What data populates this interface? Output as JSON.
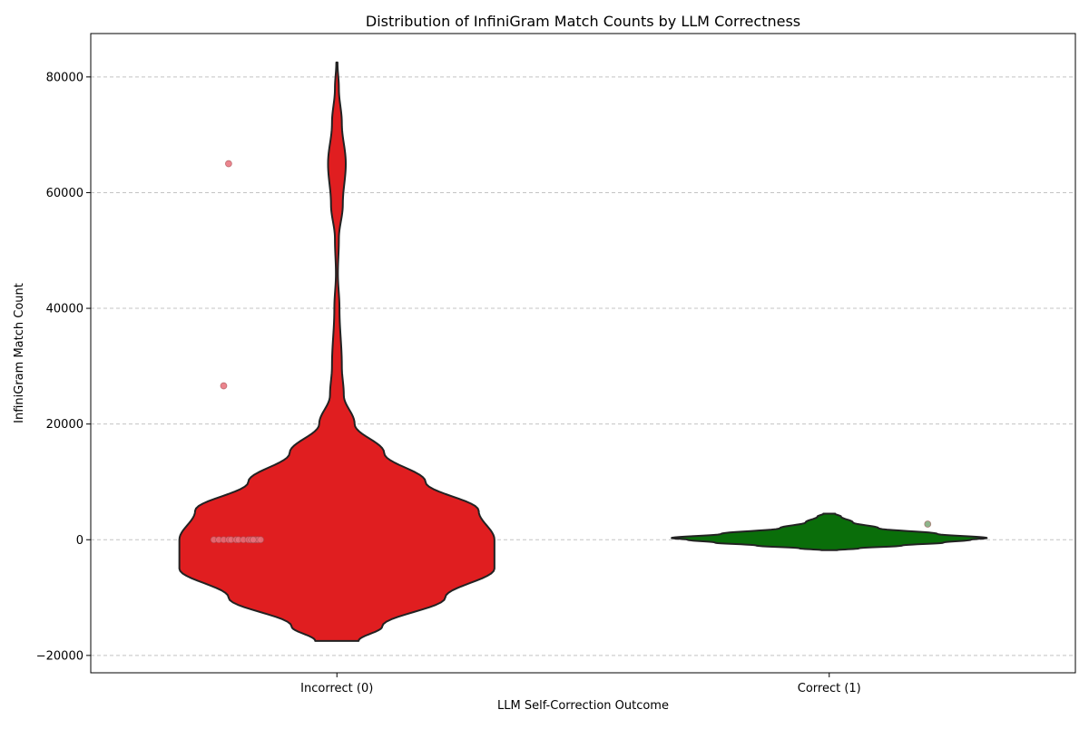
{
  "chart_data": {
    "type": "violin",
    "title": "Distribution of InfiniGram Match Counts by LLM Correctness",
    "xlabel": "LLM Self-Correction Outcome",
    "ylabel": "InfiniGram Match Count",
    "ylim": [
      -23000,
      87500
    ],
    "yticks": [
      -20000,
      0,
      20000,
      40000,
      60000,
      80000
    ],
    "ytick_labels": [
      "−20000",
      "0",
      "20000",
      "40000",
      "60000",
      "80000"
    ],
    "grid": "y-dashed",
    "categories": [
      "Incorrect (0)",
      "Correct (1)"
    ],
    "series": [
      {
        "category": "Incorrect (0)",
        "color": "#e01e20",
        "point_color": "#e8707a",
        "density_profile": [
          {
            "y": -17500,
            "w": 0.11
          },
          {
            "y": -15000,
            "w": 0.23
          },
          {
            "y": -10000,
            "w": 0.55
          },
          {
            "y": -5000,
            "w": 0.8
          },
          {
            "y": 0,
            "w": 0.8
          },
          {
            "y": 5000,
            "w": 0.72
          },
          {
            "y": 10000,
            "w": 0.45
          },
          {
            "y": 15000,
            "w": 0.24
          },
          {
            "y": 20000,
            "w": 0.09
          },
          {
            "y": 25000,
            "w": 0.035
          },
          {
            "y": 30000,
            "w": 0.025
          },
          {
            "y": 40000,
            "w": 0.013
          },
          {
            "y": 46000,
            "w": 0.005
          },
          {
            "y": 52000,
            "w": 0.01
          },
          {
            "y": 58000,
            "w": 0.03
          },
          {
            "y": 65000,
            "w": 0.045
          },
          {
            "y": 72000,
            "w": 0.025
          },
          {
            "y": 78000,
            "w": 0.01
          },
          {
            "y": 82500,
            "w": 0.003
          }
        ],
        "points": [
          {
            "y": 65000,
            "jitter": -0.22
          },
          {
            "y": 26600,
            "jitter": -0.23
          },
          {
            "y": 0,
            "jitter": -0.25
          },
          {
            "y": 0,
            "jitter": -0.24
          },
          {
            "y": 0,
            "jitter": -0.23
          },
          {
            "y": 0,
            "jitter": -0.22
          },
          {
            "y": 0,
            "jitter": -0.215
          },
          {
            "y": 0,
            "jitter": -0.205
          },
          {
            "y": 0,
            "jitter": -0.2
          },
          {
            "y": 0,
            "jitter": -0.19
          },
          {
            "y": 0,
            "jitter": -0.18
          },
          {
            "y": 0,
            "jitter": -0.175
          },
          {
            "y": 0,
            "jitter": -0.17
          },
          {
            "y": 0,
            "jitter": -0.165
          },
          {
            "y": 0,
            "jitter": -0.16
          },
          {
            "y": 0,
            "jitter": -0.155
          },
          {
            "y": 0,
            "jitter": -0.17
          }
        ]
      },
      {
        "category": "Correct (1)",
        "color": "#0a6e0a",
        "point_color": "#7aa878",
        "density_profile": [
          {
            "y": -1800,
            "w": 0.04
          },
          {
            "y": -1500,
            "w": 0.15
          },
          {
            "y": -1000,
            "w": 0.37
          },
          {
            "y": -500,
            "w": 0.58
          },
          {
            "y": 0,
            "w": 0.72
          },
          {
            "y": 300,
            "w": 0.8
          },
          {
            "y": 1000,
            "w": 0.55
          },
          {
            "y": 2000,
            "w": 0.25
          },
          {
            "y": 3000,
            "w": 0.12
          },
          {
            "y": 4000,
            "w": 0.06
          },
          {
            "y": 4500,
            "w": 0.03
          }
        ],
        "points": [
          {
            "y": 2700,
            "jitter": 0.2
          }
        ]
      }
    ]
  }
}
